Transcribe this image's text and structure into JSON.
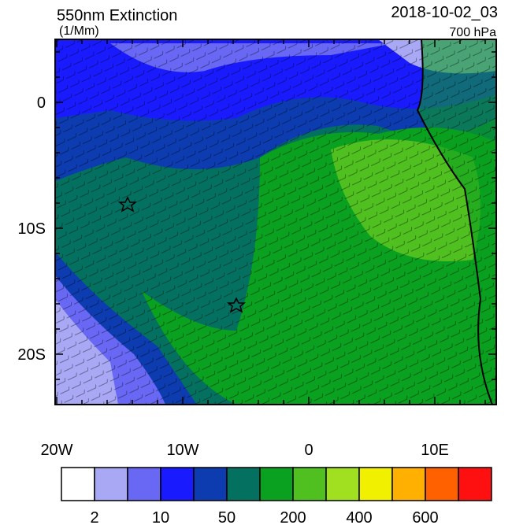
{
  "header": {
    "title": "550nm Extinction",
    "units": "(1/Mm)",
    "time": "2018-10-02_03",
    "level": "700 hPa"
  },
  "map": {
    "lat_labels": [
      "0",
      "10S",
      "20S"
    ],
    "lon_labels": [
      "20W",
      "10W",
      "0",
      "10E"
    ]
  },
  "colorbar": {
    "colors": [
      "#ffffff",
      "#a8a8f5",
      "#6868f5",
      "#1a1aff",
      "#0c3cb0",
      "#047060",
      "#0aa020",
      "#50c020",
      "#a0e020",
      "#f0f000",
      "#ffb000",
      "#ff6000",
      "#ff1010"
    ],
    "labels": [
      "2",
      "10",
      "50",
      "200",
      "400",
      "600"
    ]
  }
}
